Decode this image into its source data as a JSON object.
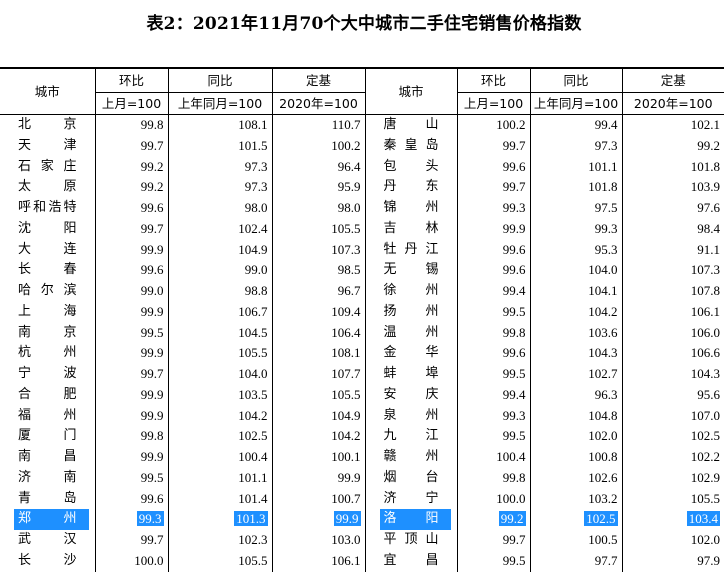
{
  "title": "表2：2021年11月70个大中城市二手住宅销售价格指数",
  "headers": {
    "city": "城市",
    "mom": "环比",
    "yoy": "同比",
    "base": "定基",
    "mom_sub": "上月=100",
    "yoy_sub": "上年同月=100",
    "base_sub": "2020年=100"
  },
  "left": [
    {
      "city": "北京",
      "mom": "99.8",
      "yoy": "108.1",
      "base": "110.7"
    },
    {
      "city": "天津",
      "mom": "99.7",
      "yoy": "101.5",
      "base": "100.2"
    },
    {
      "city": "石家庄",
      "mom": "99.2",
      "yoy": "97.3",
      "base": "96.4"
    },
    {
      "city": "太原",
      "mom": "99.2",
      "yoy": "97.3",
      "base": "95.9"
    },
    {
      "city": "呼和浩特",
      "mom": "99.6",
      "yoy": "98.0",
      "base": "98.0"
    },
    {
      "city": "沈阳",
      "mom": "99.7",
      "yoy": "102.4",
      "base": "105.5"
    },
    {
      "city": "大连",
      "mom": "99.9",
      "yoy": "104.9",
      "base": "107.3"
    },
    {
      "city": "长春",
      "mom": "99.6",
      "yoy": "99.0",
      "base": "98.5"
    },
    {
      "city": "哈尔滨",
      "mom": "99.0",
      "yoy": "98.8",
      "base": "96.7"
    },
    {
      "city": "上海",
      "mom": "99.9",
      "yoy": "106.7",
      "base": "109.4"
    },
    {
      "city": "南京",
      "mom": "99.5",
      "yoy": "104.5",
      "base": "106.4"
    },
    {
      "city": "杭州",
      "mom": "99.9",
      "yoy": "105.5",
      "base": "108.1"
    },
    {
      "city": "宁波",
      "mom": "99.7",
      "yoy": "104.0",
      "base": "107.7"
    },
    {
      "city": "合肥",
      "mom": "99.9",
      "yoy": "103.5",
      "base": "105.5"
    },
    {
      "city": "福州",
      "mom": "99.9",
      "yoy": "104.2",
      "base": "104.9"
    },
    {
      "city": "厦门",
      "mom": "99.8",
      "yoy": "102.5",
      "base": "104.2"
    },
    {
      "city": "南昌",
      "mom": "99.9",
      "yoy": "100.4",
      "base": "100.1"
    },
    {
      "city": "济南",
      "mom": "99.5",
      "yoy": "101.1",
      "base": "99.9"
    },
    {
      "city": "青岛",
      "mom": "99.6",
      "yoy": "101.4",
      "base": "100.7"
    },
    {
      "city": "郑州",
      "mom": "99.3",
      "yoy": "101.3",
      "base": "99.9"
    },
    {
      "city": "武汉",
      "mom": "99.7",
      "yoy": "102.3",
      "base": "103.0"
    },
    {
      "city": "长沙",
      "mom": "100.0",
      "yoy": "105.5",
      "base": "106.1"
    }
  ],
  "right": [
    {
      "city": "唐山",
      "mom": "100.2",
      "yoy": "99.4",
      "base": "102.1"
    },
    {
      "city": "秦皇岛",
      "mom": "99.7",
      "yoy": "97.3",
      "base": "99.2"
    },
    {
      "city": "包头",
      "mom": "99.6",
      "yoy": "101.1",
      "base": "101.8"
    },
    {
      "city": "丹东",
      "mom": "99.7",
      "yoy": "101.8",
      "base": "103.9"
    },
    {
      "city": "锦州",
      "mom": "99.3",
      "yoy": "97.5",
      "base": "97.6"
    },
    {
      "city": "吉林",
      "mom": "99.9",
      "yoy": "99.3",
      "base": "98.4"
    },
    {
      "city": "牡丹江",
      "mom": "99.6",
      "yoy": "95.3",
      "base": "91.1"
    },
    {
      "city": "无锡",
      "mom": "99.6",
      "yoy": "104.0",
      "base": "107.3"
    },
    {
      "city": "徐州",
      "mom": "99.4",
      "yoy": "104.1",
      "base": "107.8"
    },
    {
      "city": "扬州",
      "mom": "99.5",
      "yoy": "104.2",
      "base": "106.1"
    },
    {
      "city": "温州",
      "mom": "99.8",
      "yoy": "103.6",
      "base": "106.0"
    },
    {
      "city": "金华",
      "mom": "99.6",
      "yoy": "104.3",
      "base": "106.6"
    },
    {
      "city": "蚌埠",
      "mom": "99.5",
      "yoy": "102.7",
      "base": "104.3"
    },
    {
      "city": "安庆",
      "mom": "99.4",
      "yoy": "96.3",
      "base": "95.6"
    },
    {
      "city": "泉州",
      "mom": "99.3",
      "yoy": "104.8",
      "base": "107.0"
    },
    {
      "city": "九江",
      "mom": "99.5",
      "yoy": "102.0",
      "base": "102.5"
    },
    {
      "city": "赣州",
      "mom": "100.4",
      "yoy": "100.8",
      "base": "102.2"
    },
    {
      "city": "烟台",
      "mom": "99.8",
      "yoy": "102.6",
      "base": "102.9"
    },
    {
      "city": "济宁",
      "mom": "100.0",
      "yoy": "103.2",
      "base": "105.5"
    },
    {
      "city": "洛阳",
      "mom": "99.2",
      "yoy": "102.5",
      "base": "103.4"
    },
    {
      "city": "平顶山",
      "mom": "99.7",
      "yoy": "100.5",
      "base": "102.0"
    },
    {
      "city": "宜昌",
      "mom": "99.5",
      "yoy": "97.7",
      "base": "97.9"
    }
  ],
  "highlight_row": 19,
  "highlight_color": "#1e90ff"
}
